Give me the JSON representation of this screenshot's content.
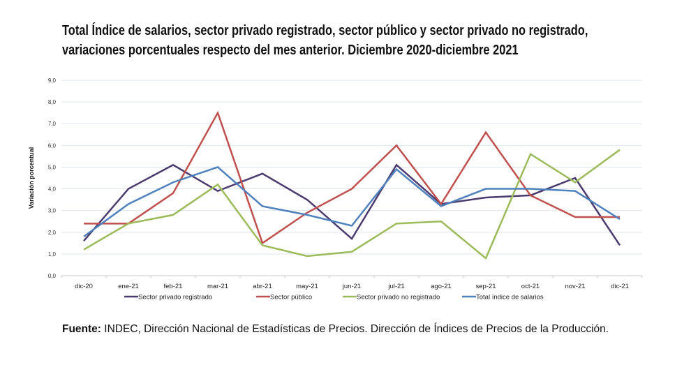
{
  "title_line1": "Total Índice de salarios, sector privado registrado, sector público y sector privado no registrado,",
  "title_line2": "variaciones porcentuales respecto del mes anterior. Diciembre 2020-diciembre 2021",
  "footer": {
    "label": "Fuente:",
    "text": " INDEC, Dirección Nacional de Estadísticas de Precios. Dirección de Índices de Precios de la Producción."
  },
  "chart_data": {
    "type": "line",
    "ylabel": "Variación porcentual",
    "ylim": [
      0,
      9
    ],
    "yticks": [
      "0,0",
      "1,0",
      "2,0",
      "3,0",
      "4,0",
      "5,0",
      "6,0",
      "7,0",
      "8,0",
      "9,0"
    ],
    "grid": true,
    "legend_position": "bottom",
    "categories": [
      "dic-20",
      "ene-21",
      "feb-21",
      "mar-21",
      "abr-21",
      "may-21",
      "jun-21",
      "jul-21",
      "ago-21",
      "sep-21",
      "oct-21",
      "nov-21",
      "dic-21"
    ],
    "series": [
      {
        "name": "Sector privado registrado",
        "color": "#4b3a6e",
        "values": [
          1.6,
          4.0,
          5.1,
          3.9,
          4.7,
          3.5,
          1.7,
          5.1,
          3.3,
          3.6,
          3.7,
          4.5,
          1.4
        ]
      },
      {
        "name": "Sector público",
        "color": "#c0504d",
        "values": [
          2.4,
          2.4,
          3.8,
          7.5,
          1.5,
          2.9,
          4.0,
          6.0,
          3.3,
          6.6,
          3.7,
          2.7,
          2.7
        ]
      },
      {
        "name": "Sector privado no registrado",
        "color": "#9bbb59",
        "values": [
          1.2,
          2.4,
          2.8,
          4.2,
          1.4,
          0.9,
          1.1,
          2.4,
          2.5,
          0.8,
          5.6,
          4.3,
          5.8
        ]
      },
      {
        "name": "Total índice de salarios",
        "color": "#4f81bd",
        "values": [
          1.8,
          3.3,
          4.3,
          5.0,
          3.2,
          2.8,
          2.3,
          4.9,
          3.2,
          4.0,
          4.0,
          3.9,
          2.6
        ]
      }
    ]
  }
}
